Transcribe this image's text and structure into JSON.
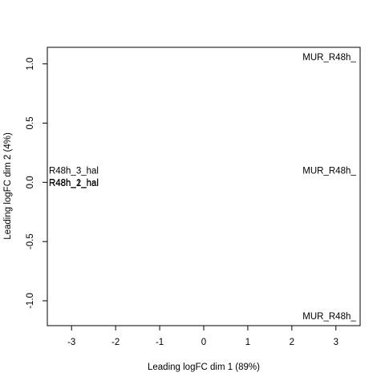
{
  "chart_data": {
    "type": "scatter",
    "title": "",
    "xlabel": "Leading logFC dim 1 (89%)",
    "ylabel": "Leading logFC dim 2 (4%)",
    "xlim": [
      -3.55,
      3.55
    ],
    "ylim": [
      -1.21,
      1.14
    ],
    "xticks": [
      -3,
      -2,
      -1,
      0,
      1,
      2,
      3
    ],
    "yticks": [
      -1.0,
      -0.5,
      0.0,
      0.5,
      1.0
    ],
    "xtick_labels": [
      "-3",
      "-2",
      "-1",
      "0",
      "1",
      "2",
      "3"
    ],
    "ytick_labels": [
      "-1.0",
      "-0.5",
      "0.0",
      "0.5",
      "1.0"
    ],
    "grid": false,
    "points": [
      {
        "label": "R48h_3_hal",
        "x": -2.95,
        "y": 0.1
      },
      {
        "label": "R48h_1_hal",
        "x": -2.95,
        "y": 0.0
      },
      {
        "label": "R48h_2_hal",
        "x": -2.95,
        "y": -0.005
      },
      {
        "label": "MUR_R48h_",
        "x": 2.85,
        "y": 1.06
      },
      {
        "label": "MUR_R48h_",
        "x": 2.85,
        "y": 0.1
      },
      {
        "label": "MUR_R48h_",
        "x": 2.85,
        "y": -1.13
      }
    ]
  }
}
